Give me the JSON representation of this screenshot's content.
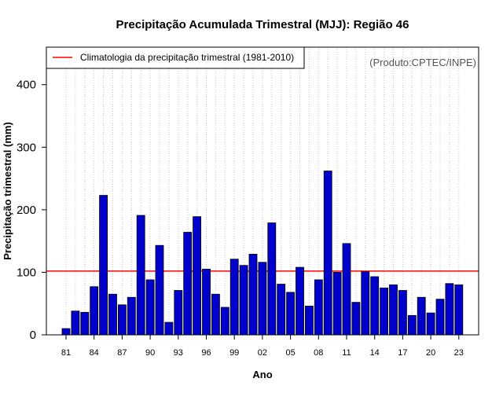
{
  "chart_data": {
    "type": "bar",
    "title": "Precipitação Acumulada Trimestral (MJJ): Região 46",
    "xlabel": "Ano",
    "ylabel": "Precipitação trimestral (mm)",
    "ylim": [
      0,
      460
    ],
    "yticks": [
      0,
      100,
      200,
      300,
      400
    ],
    "categories": [
      "1981",
      "1982",
      "1983",
      "1984",
      "1985",
      "1986",
      "1987",
      "1988",
      "1989",
      "1990",
      "1991",
      "1992",
      "1993",
      "1994",
      "1995",
      "1996",
      "1997",
      "1998",
      "1999",
      "2000",
      "2001",
      "2002",
      "2003",
      "2004",
      "2005",
      "2006",
      "2007",
      "2008",
      "2009",
      "2010",
      "2011",
      "2012",
      "2013",
      "2014",
      "2015",
      "2016",
      "2017",
      "2018",
      "2019",
      "2020",
      "2021",
      "2022",
      "2023"
    ],
    "values": [
      10,
      38,
      36,
      77,
      223,
      65,
      48,
      60,
      191,
      88,
      143,
      20,
      71,
      164,
      189,
      105,
      65,
      44,
      121,
      111,
      129,
      116,
      179,
      81,
      68,
      108,
      46,
      88,
      262,
      100,
      146,
      52,
      101,
      93,
      75,
      80,
      71,
      31,
      60,
      35,
      57,
      82,
      80
    ],
    "xtick_labels": [
      "81",
      "84",
      "87",
      "90",
      "93",
      "96",
      "99",
      "02",
      "05",
      "08",
      "11",
      "14",
      "17",
      "20",
      "23"
    ],
    "xtick_years": [
      1981,
      1984,
      1987,
      1990,
      1993,
      1996,
      1999,
      2002,
      2005,
      2008,
      2011,
      2014,
      2017,
      2020,
      2023
    ],
    "climatology_value": 102,
    "legend_label": "Climatologia da precipitação trimestral (1981-2010)",
    "legend_position": "top-left",
    "credit": "(Produto:CPTEC/INPE)",
    "grid": "vertical-dotted",
    "colors": {
      "bar_fill": "#0000cd",
      "bar_stroke": "#000000",
      "climatology_line": "#ff0000",
      "grid": "#c8c8c8"
    }
  }
}
